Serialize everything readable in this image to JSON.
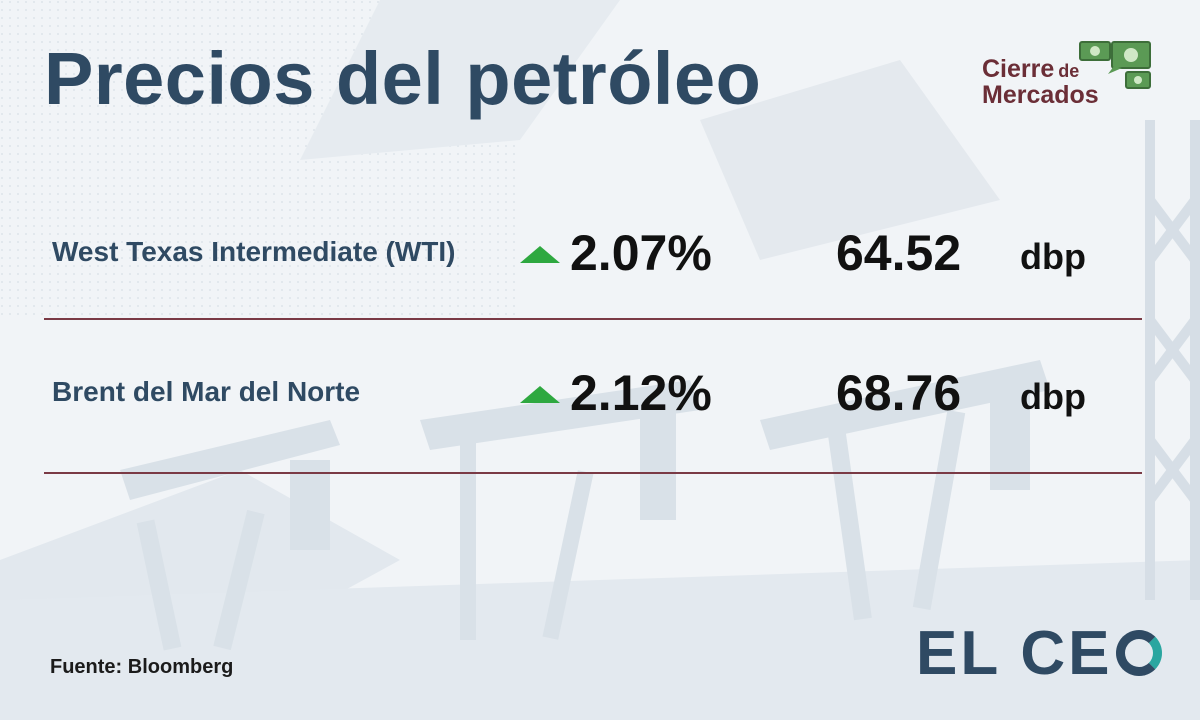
{
  "title": "Precios del petróleo",
  "badge": {
    "line1": "Cierre",
    "line1_small": "de",
    "line2": "Mercados",
    "icon": "money-chat-icon"
  },
  "rows": [
    {
      "name": "West Texas Intermediate (WTI)",
      "direction": "up",
      "change": "2.07%",
      "price": "64.52",
      "unit": "dbp"
    },
    {
      "name": "Brent del Mar del Norte",
      "direction": "up",
      "change": "2.12%",
      "price": "68.76",
      "unit": "dbp"
    }
  ],
  "source": "Fuente: Bloomberg",
  "logo": {
    "text_el": "EL",
    "text_ce": "CE"
  },
  "colors": {
    "title": "#2f4a63",
    "accent": "#6b2e37",
    "up": "#2ea840",
    "rule": "#7a3a45",
    "logo_ring": "#2aa6a0"
  }
}
